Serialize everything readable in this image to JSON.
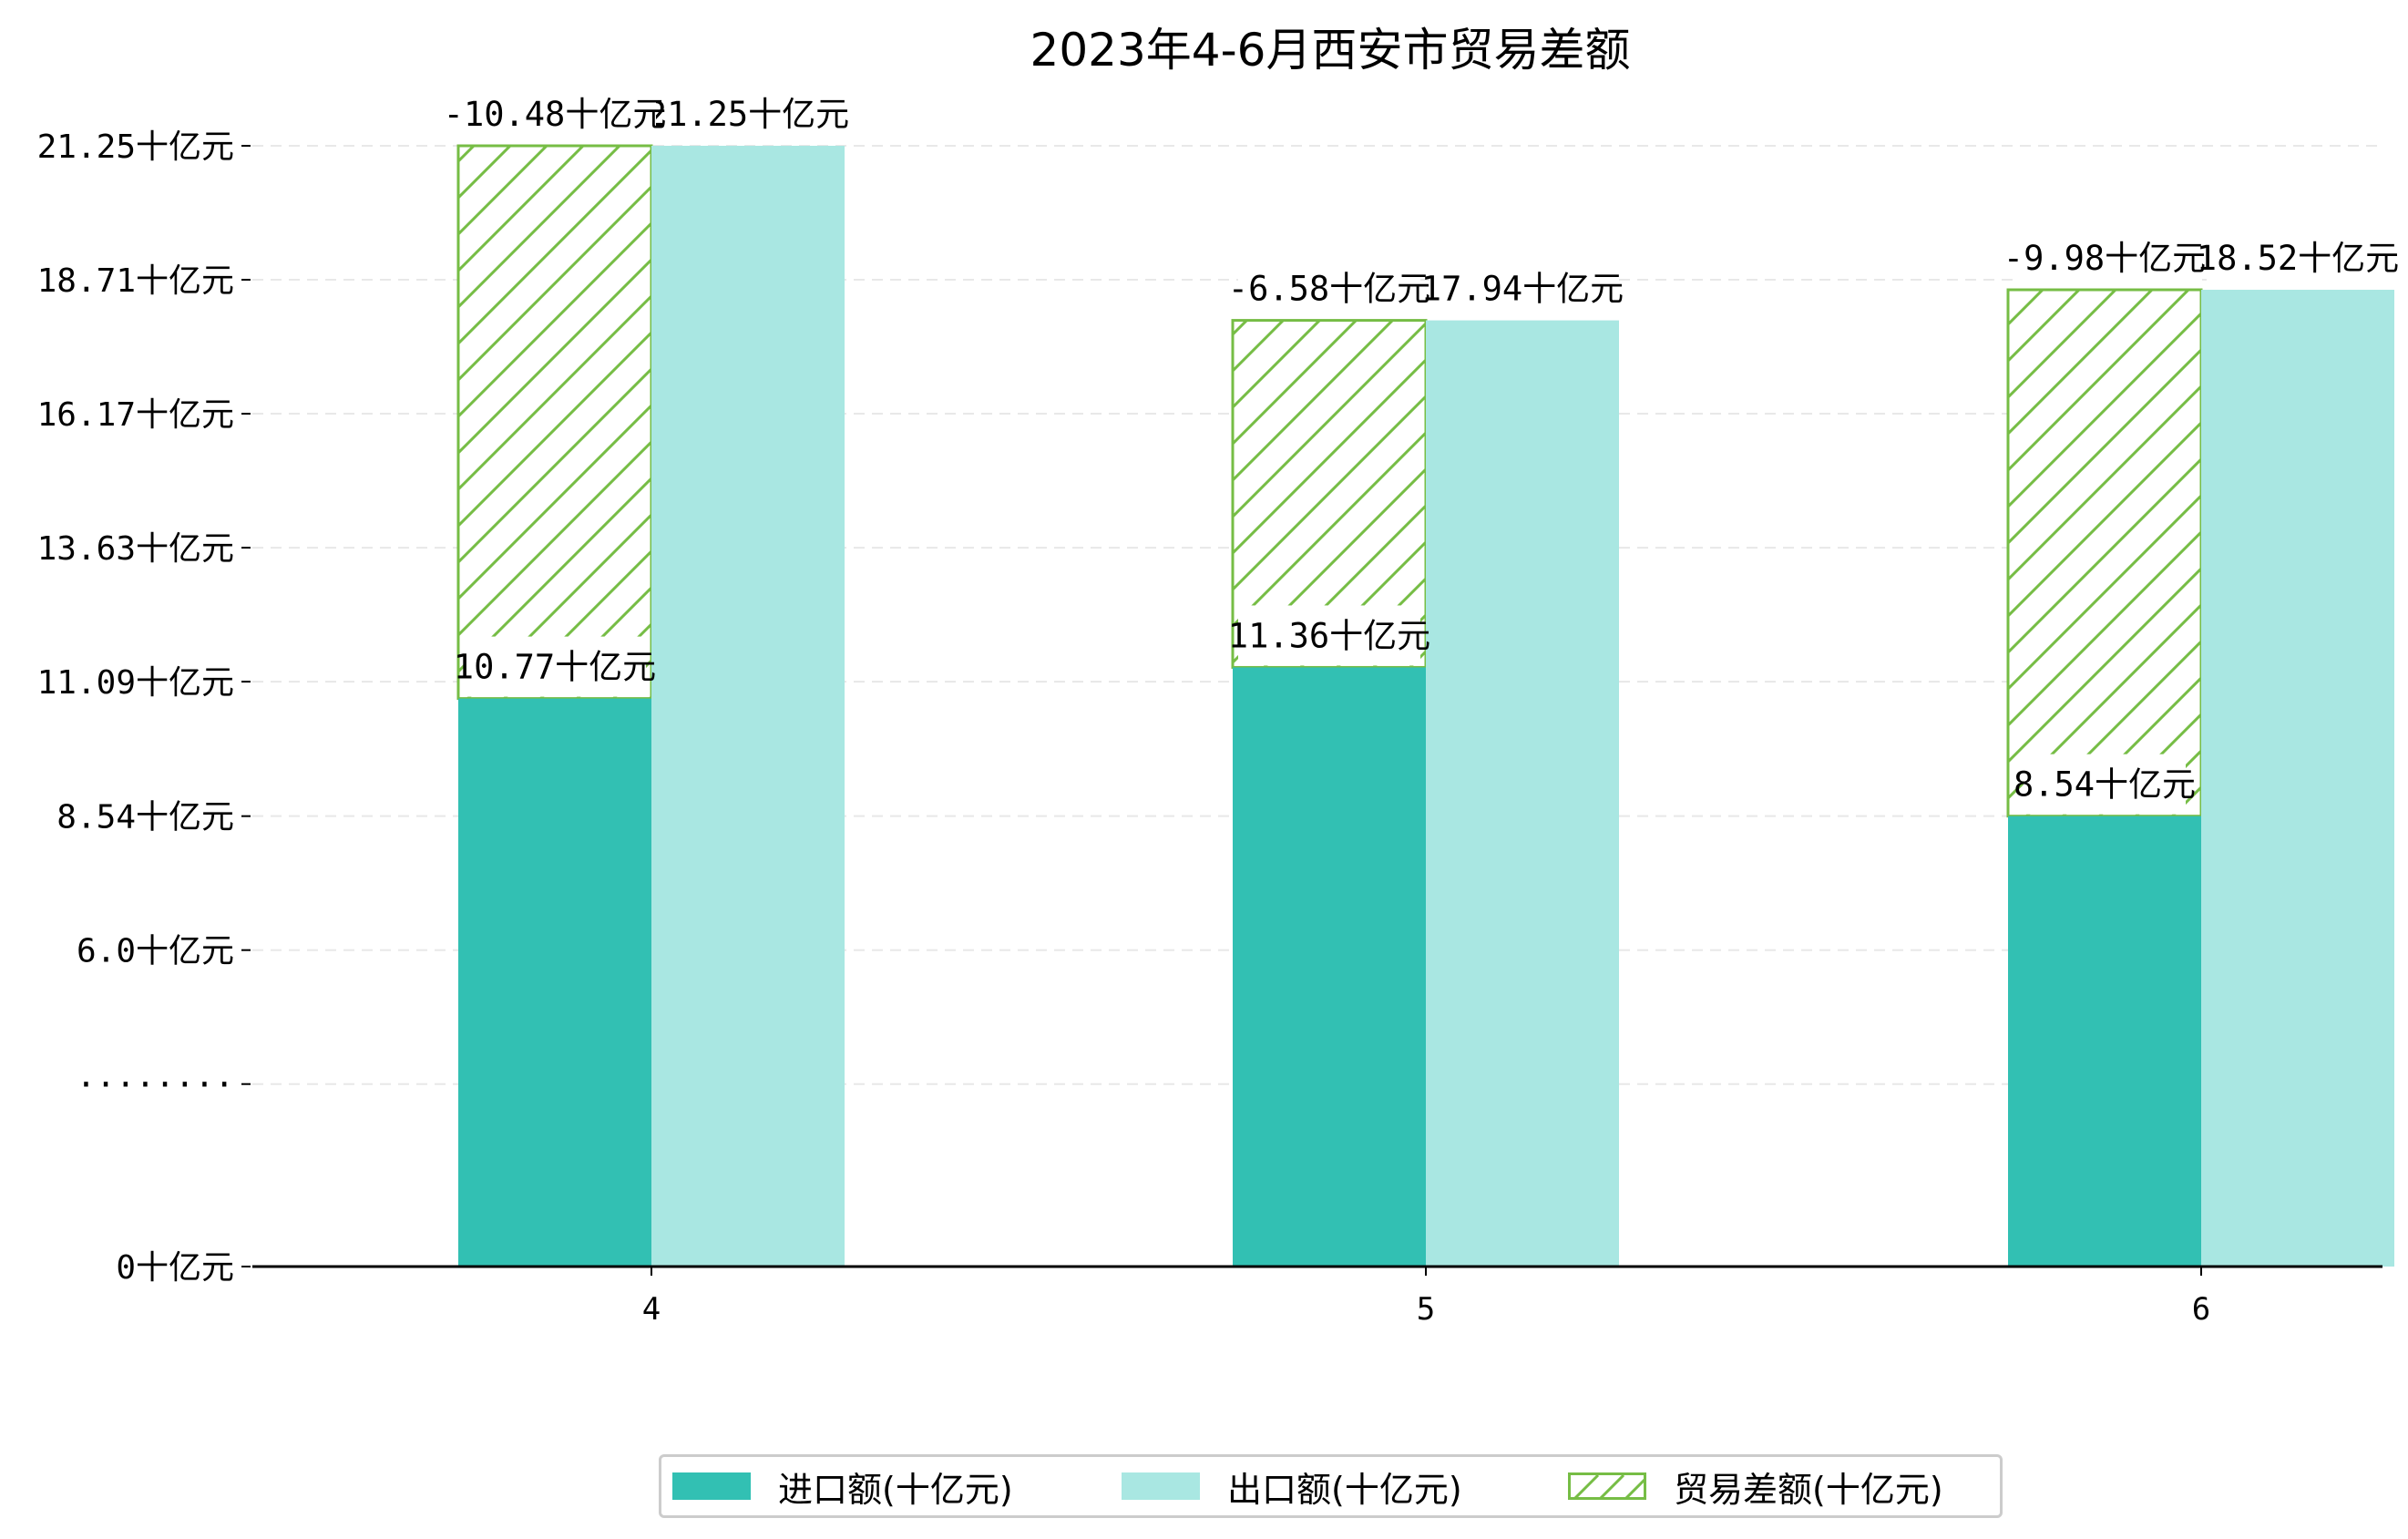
{
  "chart_data": {
    "type": "bar",
    "title": "2023年4-6月西安市贸易差额",
    "xlabel": "",
    "ylabel": "",
    "categories": [
      "4",
      "5",
      "6"
    ],
    "series": [
      {
        "name": "进口额(十亿元)",
        "values": [
          10.77,
          11.36,
          8.54
        ],
        "labels": [
          "10.77十亿元",
          "11.36十亿元",
          "8.54十亿元"
        ],
        "color": "#32c0b3"
      },
      {
        "name": "出口额(十亿元)",
        "values": [
          21.25,
          17.94,
          18.52
        ],
        "labels": [
          "21.25十亿元",
          "17.94十亿元",
          "18.52十亿元"
        ],
        "color": "#a9e7e2"
      },
      {
        "name": "贸易差额(十亿元)",
        "values": [
          -10.48,
          -6.58,
          -9.98
        ],
        "labels": [
          "-10.48十亿元",
          "-6.58十亿元",
          "-9.98十亿元"
        ],
        "color": "#76bd45",
        "hatch": "diagonal",
        "stacked_on": "进口额(十亿元)"
      }
    ],
    "yticks": [
      {
        "value": 0,
        "label": "0十亿元"
      },
      {
        "value": 3.46,
        "label": "········"
      },
      {
        "value": 6.0,
        "label": "6.0十亿元"
      },
      {
        "value": 8.54,
        "label": "8.54十亿元"
      },
      {
        "value": 11.09,
        "label": "11.09十亿元"
      },
      {
        "value": 13.63,
        "label": "13.63十亿元"
      },
      {
        "value": 16.17,
        "label": "16.17十亿元"
      },
      {
        "value": 18.71,
        "label": "18.71十亿元"
      },
      {
        "value": 21.25,
        "label": "21.25十亿元"
      }
    ],
    "ylim": [
      0,
      21.25
    ],
    "grid": "horizontal dashed",
    "legend_position": "bottom-center"
  }
}
